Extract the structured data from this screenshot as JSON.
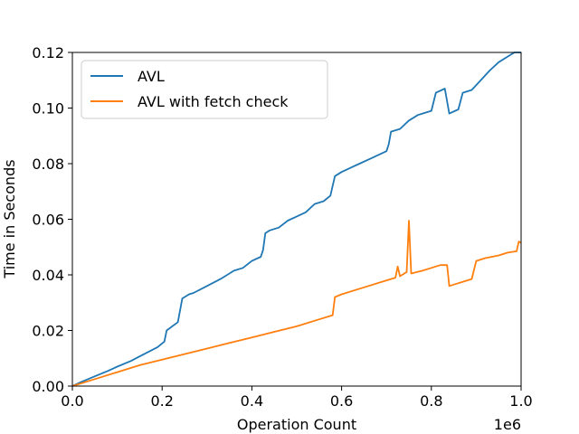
{
  "chart_data": {
    "type": "line",
    "xlabel": "Operation Count",
    "ylabel": "Time in Seconds",
    "x_offset_label": "1e6",
    "xlim": [
      0,
      1.0
    ],
    "ylim": [
      0,
      0.12
    ],
    "x_ticks": [
      "0.0",
      "0.2",
      "0.4",
      "0.6",
      "0.8",
      "1.0"
    ],
    "y_ticks": [
      "0.00",
      "0.02",
      "0.04",
      "0.06",
      "0.08",
      "0.10",
      "0.12"
    ],
    "legend_position": "top-left",
    "grid": false,
    "series": [
      {
        "name": "AVL",
        "color": "#1f77b4",
        "points": [
          [
            0.0,
            0.0
          ],
          [
            0.02,
            0.0015
          ],
          [
            0.05,
            0.0035
          ],
          [
            0.08,
            0.0055
          ],
          [
            0.1,
            0.007
          ],
          [
            0.13,
            0.009
          ],
          [
            0.16,
            0.0115
          ],
          [
            0.19,
            0.014
          ],
          [
            0.205,
            0.016
          ],
          [
            0.21,
            0.02
          ],
          [
            0.235,
            0.023
          ],
          [
            0.245,
            0.0315
          ],
          [
            0.26,
            0.033
          ],
          [
            0.27,
            0.0335
          ],
          [
            0.3,
            0.036
          ],
          [
            0.33,
            0.0385
          ],
          [
            0.36,
            0.0415
          ],
          [
            0.38,
            0.0425
          ],
          [
            0.4,
            0.045
          ],
          [
            0.42,
            0.0465
          ],
          [
            0.425,
            0.049
          ],
          [
            0.43,
            0.055
          ],
          [
            0.44,
            0.056
          ],
          [
            0.46,
            0.057
          ],
          [
            0.48,
            0.0595
          ],
          [
            0.5,
            0.061
          ],
          [
            0.52,
            0.0625
          ],
          [
            0.54,
            0.0655
          ],
          [
            0.56,
            0.0665
          ],
          [
            0.575,
            0.0685
          ],
          [
            0.585,
            0.0755
          ],
          [
            0.6,
            0.077
          ],
          [
            0.62,
            0.0785
          ],
          [
            0.64,
            0.08
          ],
          [
            0.66,
            0.0815
          ],
          [
            0.68,
            0.083
          ],
          [
            0.7,
            0.0845
          ],
          [
            0.705,
            0.087
          ],
          [
            0.71,
            0.0915
          ],
          [
            0.73,
            0.0925
          ],
          [
            0.75,
            0.0955
          ],
          [
            0.77,
            0.0975
          ],
          [
            0.79,
            0.0985
          ],
          [
            0.8,
            0.099
          ],
          [
            0.81,
            0.1055
          ],
          [
            0.83,
            0.107
          ],
          [
            0.84,
            0.098
          ],
          [
            0.86,
            0.0995
          ],
          [
            0.87,
            0.1055
          ],
          [
            0.89,
            0.1065
          ],
          [
            0.91,
            0.11
          ],
          [
            0.93,
            0.1135
          ],
          [
            0.95,
            0.1165
          ],
          [
            0.97,
            0.1185
          ],
          [
            0.985,
            0.12
          ],
          [
            1.0,
            0.12
          ]
        ]
      },
      {
        "name": "AVL with fetch check",
        "color": "#ff7f0e",
        "points": [
          [
            0.0,
            0.0
          ],
          [
            0.05,
            0.0025
          ],
          [
            0.1,
            0.005
          ],
          [
            0.15,
            0.0075
          ],
          [
            0.2,
            0.0095
          ],
          [
            0.25,
            0.0115
          ],
          [
            0.3,
            0.0135
          ],
          [
            0.35,
            0.0155
          ],
          [
            0.4,
            0.0175
          ],
          [
            0.45,
            0.0195
          ],
          [
            0.5,
            0.0215
          ],
          [
            0.55,
            0.024
          ],
          [
            0.58,
            0.0255
          ],
          [
            0.585,
            0.032
          ],
          [
            0.6,
            0.033
          ],
          [
            0.65,
            0.0355
          ],
          [
            0.7,
            0.038
          ],
          [
            0.72,
            0.039
          ],
          [
            0.725,
            0.043
          ],
          [
            0.73,
            0.0395
          ],
          [
            0.745,
            0.041
          ],
          [
            0.75,
            0.0595
          ],
          [
            0.755,
            0.0405
          ],
          [
            0.78,
            0.0415
          ],
          [
            0.8,
            0.0425
          ],
          [
            0.82,
            0.0435
          ],
          [
            0.835,
            0.0435
          ],
          [
            0.84,
            0.036
          ],
          [
            0.86,
            0.037
          ],
          [
            0.88,
            0.038
          ],
          [
            0.89,
            0.0385
          ],
          [
            0.9,
            0.045
          ],
          [
            0.92,
            0.046
          ],
          [
            0.95,
            0.047
          ],
          [
            0.97,
            0.048
          ],
          [
            0.99,
            0.0485
          ],
          [
            0.995,
            0.052
          ],
          [
            1.0,
            0.0515
          ]
        ]
      }
    ]
  }
}
